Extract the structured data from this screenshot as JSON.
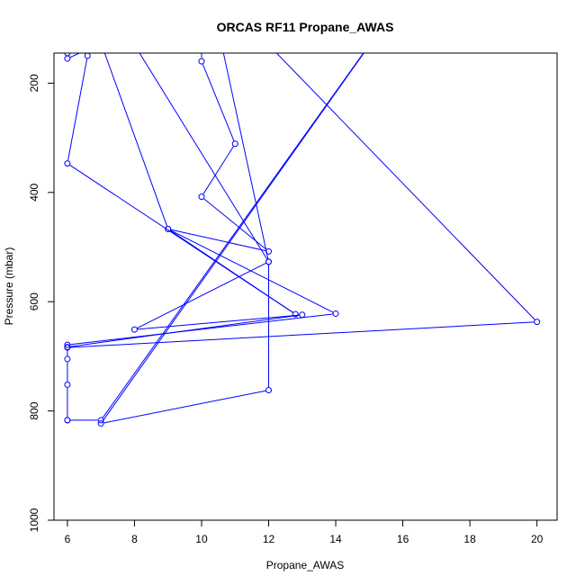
{
  "chart_data": {
    "type": "line",
    "title": "ORCAS RF11 Propane_AWAS",
    "xlabel": "Propane_AWAS",
    "ylabel": "Pressure (mbar)",
    "xlim": [
      5.6,
      20.6
    ],
    "ylim": [
      1000,
      145
    ],
    "y_reversed": true,
    "x_ticks": [
      6,
      8,
      10,
      12,
      14,
      16,
      18,
      20
    ],
    "y_ticks": [
      200,
      400,
      600,
      800,
      1000
    ],
    "grid": false,
    "legend": "none",
    "colors": {
      "series": "#0000ff",
      "axis": "#000000",
      "background": "#ffffff"
    },
    "series": [
      {
        "points": [
          {
            "x": 15.0,
            "y": 130
          },
          {
            "x": 7.0,
            "y": 817
          },
          {
            "x": 6.0,
            "y": 817
          },
          {
            "x": 6.0,
            "y": 817
          },
          {
            "x": 6.0,
            "y": 752
          },
          {
            "x": 6.0,
            "y": 705
          },
          {
            "x": 6.0,
            "y": 684
          },
          {
            "x": 20.0,
            "y": 637
          },
          {
            "x": 12.0,
            "y": 130
          },
          {
            "x": 12.0,
            "y": 130
          }
        ]
      },
      {
        "points": [
          {
            "x": 7.0,
            "y": 127
          },
          {
            "x": 6.0,
            "y": 155
          },
          {
            "x": 6.0,
            "y": 145
          },
          {
            "x": 7.0,
            "y": 126
          },
          {
            "x": 9.0,
            "y": 467
          },
          {
            "x": 14.0,
            "y": 622
          },
          {
            "x": 6.0,
            "y": 679
          },
          {
            "x": 6.0,
            "y": 683
          },
          {
            "x": 13.0,
            "y": 624
          },
          {
            "x": 8.0,
            "y": 651
          },
          {
            "x": 12.0,
            "y": 527
          },
          {
            "x": 12.0,
            "y": 762
          },
          {
            "x": 7.0,
            "y": 823
          },
          {
            "x": 15.0,
            "y": 131
          }
        ]
      },
      {
        "points": [
          {
            "x": 6.6,
            "y": 150
          },
          {
            "x": 6.0,
            "y": 347
          },
          {
            "x": 12.8,
            "y": 623
          },
          {
            "x": 9.0,
            "y": 467
          },
          {
            "x": 12.0,
            "y": 508
          },
          {
            "x": 10.0,
            "y": 408
          },
          {
            "x": 11.0,
            "y": 311
          },
          {
            "x": 10.0,
            "y": 160
          },
          {
            "x": 10.0,
            "y": 130
          },
          {
            "x": 12.0,
            "y": 130
          },
          {
            "x": 10.6,
            "y": 130
          },
          {
            "x": 12.0,
            "y": 527
          },
          {
            "x": 8.0,
            "y": 130
          }
        ]
      }
    ]
  }
}
